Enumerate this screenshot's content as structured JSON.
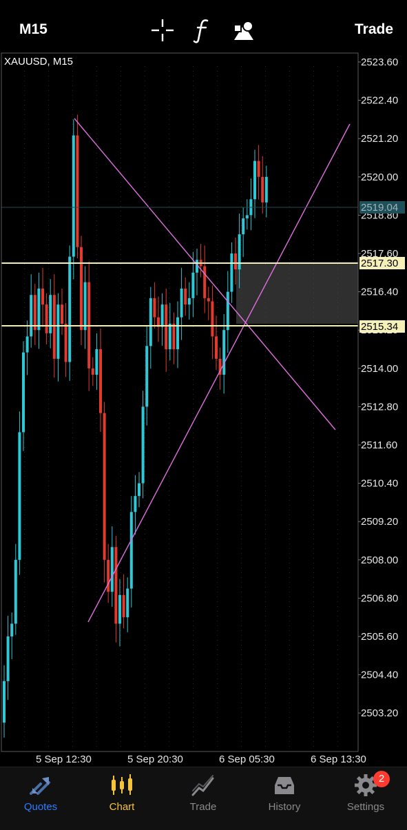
{
  "topbar": {
    "timeframe": "M15",
    "trade_label": "Trade",
    "icons": [
      "crosshair-icon",
      "indicators-f-icon",
      "objects-icon"
    ]
  },
  "chart_header": "XAUUSD, M15",
  "price_axis": [
    "2523.60",
    "2522.40",
    "2521.20",
    "2520.00",
    "2518.80",
    "2517.60",
    "2516.40",
    "2515.20",
    "2514.00",
    "2512.80",
    "2511.60",
    "2510.40",
    "2509.20",
    "2508.00",
    "2506.80",
    "2505.60",
    "2504.40",
    "2503.20"
  ],
  "time_axis": [
    "5 Sep 12:30",
    "5 Sep 20:30",
    "6 Sep 05:30",
    "6 Sep 13:30"
  ],
  "markers": {
    "current_price": "2519.04",
    "line_upper": "2517.30",
    "line_lower": "2515.34"
  },
  "colors": {
    "bull": "#2ec9d6",
    "bear": "#e23b2e",
    "level_line": "#f5f0b8",
    "trendline": "#e070e0",
    "current_tag": "#1f4f58",
    "active_tab": "#2f7bff",
    "chart_tab": "#f5c33b"
  },
  "tabs": [
    {
      "label": "Quotes",
      "icon": "quotes-icon",
      "color": "#2f7bff"
    },
    {
      "label": "Chart",
      "icon": "chart-candles-icon",
      "color": "#f5c33b"
    },
    {
      "label": "Trade",
      "icon": "trade-icon",
      "color": "#8a8a8e"
    },
    {
      "label": "History",
      "icon": "history-inbox-icon",
      "color": "#8a8a8e"
    },
    {
      "label": "Settings",
      "icon": "settings-gear-icon",
      "color": "#8a8a8e"
    }
  ],
  "settings_badge": "2"
}
